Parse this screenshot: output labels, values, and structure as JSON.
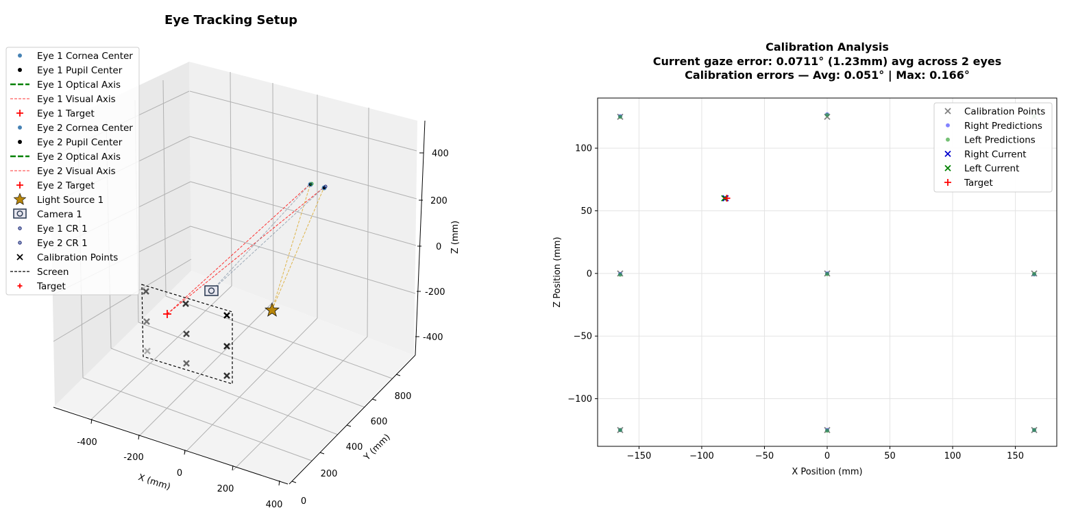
{
  "left_panel": {
    "title": "Eye Tracking Setup",
    "x_label": "X (mm)",
    "y_label": "Y (mm)",
    "z_label": "Z (mm)",
    "x_ticks": [
      "-400",
      "-200",
      "0",
      "200",
      "400"
    ],
    "y_ticks": [
      "0",
      "200",
      "400",
      "600",
      "800"
    ],
    "z_ticks": [
      "400",
      "200",
      "0",
      "-200",
      "-400"
    ],
    "legend": [
      {
        "label": "Eye 1 Cornea Center",
        "marker": "dot",
        "color": "#4682b4"
      },
      {
        "label": "Eye 1 Pupil Center",
        "marker": "dot",
        "color": "#000000"
      },
      {
        "label": "Eye 1 Optical Axis",
        "marker": "dash-thick",
        "color": "#008000"
      },
      {
        "label": "Eye 1 Visual Axis",
        "marker": "dash-thin",
        "color": "#ff0000"
      },
      {
        "label": "Eye 1 Target",
        "marker": "plus",
        "color": "#ff0000"
      },
      {
        "label": "Eye 2 Cornea Center",
        "marker": "dot",
        "color": "#4682b4"
      },
      {
        "label": "Eye 2 Pupil Center",
        "marker": "dot",
        "color": "#000000"
      },
      {
        "label": "Eye 2 Optical Axis",
        "marker": "dash-thick",
        "color": "#008000"
      },
      {
        "label": "Eye 2 Visual Axis",
        "marker": "dash-thin",
        "color": "#ff0000"
      },
      {
        "label": "Eye 2 Target",
        "marker": "plus",
        "color": "#ff0000"
      },
      {
        "label": "Light Source 1",
        "marker": "star",
        "color": "#b8860b"
      },
      {
        "label": "Camera 1",
        "marker": "camera-icon",
        "color": "#2f3e56"
      },
      {
        "label": "Eye 1 CR 1",
        "marker": "small-ring",
        "color": "#191970"
      },
      {
        "label": "Eye 2 CR 1",
        "marker": "small-ring",
        "color": "#191970"
      },
      {
        "label": "Calibration Points",
        "marker": "x",
        "color": "#000000"
      },
      {
        "label": "Screen",
        "marker": "dash-black",
        "color": "#000000"
      },
      {
        "label": "Target",
        "marker": "plus-small",
        "color": "#ff0000"
      }
    ]
  },
  "chart_data": {
    "type": "scatter",
    "title": "Calibration Analysis",
    "subtitle_lines": [
      "Current gaze error: 0.0711° (1.23mm) avg across 2 eyes",
      "Calibration errors — Avg: 0.051° | Max: 0.166°"
    ],
    "xlabel": "X Position (mm)",
    "ylabel": "Z Position (mm)",
    "xlim": [
      -183,
      183
    ],
    "ylim": [
      -138,
      140
    ],
    "x_ticks": [
      -150,
      -100,
      -50,
      0,
      50,
      100,
      150
    ],
    "x_tick_labels": [
      "−150",
      "−100",
      "−50",
      "0",
      "50",
      "100",
      "150"
    ],
    "y_ticks": [
      -100,
      -50,
      0,
      50,
      100
    ],
    "y_tick_labels": [
      "−100",
      "−50",
      "0",
      "50",
      "100"
    ],
    "grid": true,
    "legend_position": "top-right",
    "series": [
      {
        "name": "Calibration Points",
        "marker": "x",
        "color": "#808080",
        "points": [
          [
            -165,
            125
          ],
          [
            0,
            125
          ],
          [
            165,
            125
          ],
          [
            -165,
            0
          ],
          [
            0,
            0
          ],
          [
            165,
            0
          ],
          [
            -165,
            -125
          ],
          [
            0,
            -125
          ],
          [
            165,
            -125
          ]
        ]
      },
      {
        "name": "Right Predictions",
        "marker": "dot",
        "color": "#4040ff",
        "points": [
          [
            -165,
            125.5
          ],
          [
            0,
            127
          ],
          [
            165,
            -0.8
          ],
          [
            -165,
            -0.5
          ],
          [
            0,
            0
          ],
          [
            -165,
            -125
          ],
          [
            0,
            -125
          ],
          [
            165,
            -125
          ]
        ]
      },
      {
        "name": "Left Predictions",
        "marker": "dot",
        "color": "#2ca02c",
        "points": [
          [
            -165,
            125
          ],
          [
            0,
            126.5
          ],
          [
            165,
            125.5
          ],
          [
            -165,
            -1
          ],
          [
            0,
            -0.5
          ],
          [
            165,
            -0.5
          ],
          [
            -165,
            -125
          ],
          [
            0,
            -125.5
          ],
          [
            165,
            -125
          ]
        ]
      },
      {
        "name": "Right Current",
        "marker": "x",
        "color": "#0000cd",
        "points": [
          [
            -81,
            60
          ]
        ]
      },
      {
        "name": "Left Current",
        "marker": "x",
        "color": "#008000",
        "points": [
          [
            -82,
            60
          ]
        ]
      },
      {
        "name": "Target",
        "marker": "plus",
        "color": "#ff0000",
        "points": [
          [
            -80,
            60
          ]
        ]
      }
    ]
  }
}
